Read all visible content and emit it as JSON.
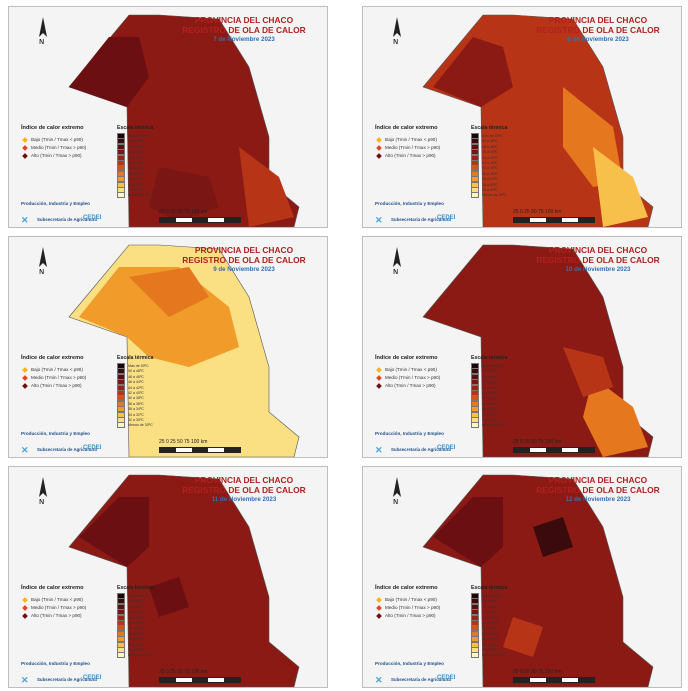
{
  "common": {
    "title_line1": "PROVINCIA DEL CHACO",
    "title_line2": "REGISTRO DE OLA DE CALOR",
    "legend_title": "Índice de calor extremo",
    "legend_items": [
      {
        "label": "Bajo (Tmin / Tmax < p90)",
        "color": "#f7b21c"
      },
      {
        "label": "Medio (Tmin / Tmax > p90)",
        "color": "#e0472a"
      },
      {
        "label": "Alto (Tmin / Tmax > p90)",
        "color": "#6b0f13"
      }
    ],
    "scale_title": "Escala térmica",
    "scale_items": [
      {
        "label": "Más de 50ºC",
        "color": "#1a0506"
      },
      {
        "label": "50 a 48ºC",
        "color": "#3b0a0c"
      },
      {
        "label": "48 a 46ºC",
        "color": "#5a1012"
      },
      {
        "label": "46 a 44ºC",
        "color": "#7a1614"
      },
      {
        "label": "44 a 42ºC",
        "color": "#9a2216"
      },
      {
        "label": "42 a 40ºC",
        "color": "#b83417"
      },
      {
        "label": "40 a 38ºC",
        "color": "#d2541a"
      },
      {
        "label": "38 a 36ºC",
        "color": "#e5771f"
      },
      {
        "label": "36 a 34ºC",
        "color": "#f09b2a"
      },
      {
        "label": "34 a 32ºC",
        "color": "#f6c04a"
      },
      {
        "label": "32 a 30ºC",
        "color": "#fadf83"
      },
      {
        "label": "Menos de 30ºC",
        "color": "#fff7c2"
      }
    ],
    "inst_name": "Producción, Industria y Empleo",
    "inst_sub": "Subsecretaría de Agricultura",
    "cedei": "CEDEI",
    "scalebar_label": "25   0   25   50   75   100 km",
    "north_label": "N"
  },
  "maps": [
    {
      "date": "7 de Noviembre 2023"
    },
    {
      "date": "8 de Noviembre 2023"
    },
    {
      "date": "9 de Noviembre 2023"
    },
    {
      "date": "10 de Noviembre 2023"
    },
    {
      "date": "11 de Noviembre 2023"
    },
    {
      "date": "12 de Noviembre 2023"
    }
  ],
  "colors": {
    "dark": "#6b0f13",
    "main": "#8c1a14",
    "mid": "#b83417",
    "orange": "#e5771f",
    "light": "#f6c04a",
    "pale": "#fff7c2"
  }
}
